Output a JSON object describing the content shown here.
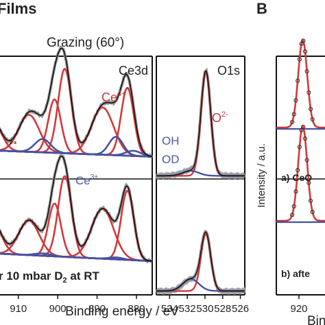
{
  "panel_a": {
    "heading": "Films",
    "condition": "Grazing (60°)"
  },
  "panel_b": {
    "letter": "B"
  },
  "chart_data": [
    {
      "type": "line",
      "panel": "Ce3d",
      "title": "Ce3d",
      "xlabel": "Binding energy / eV",
      "xlim": [
        915,
        876
      ],
      "x_reversed": true,
      "ticks": [
        910,
        900,
        890,
        880
      ],
      "tick_labels": [
        "910",
        "900",
        "890",
        "880"
      ],
      "annotations": {
        "ce4": "Ce4+",
        "ce3": "Ce3+",
        "cropped_sample_label": "2-x",
        "bottom_label": "r 10 mbar D₂ at RT"
      },
      "components": {
        "ce4": [
          {
            "c": 916.6,
            "w": 2.2
          },
          {
            "c": 907.3,
            "w": 2.6
          },
          {
            "c": 900.8,
            "w": 1.6
          },
          {
            "c": 898.2,
            "w": 1.7
          },
          {
            "c": 888.6,
            "w": 2.8
          },
          {
            "c": 882.3,
            "w": 1.6
          }
        ],
        "ce3": [
          {
            "c": 903.8,
            "w": 2.0
          },
          {
            "c": 885.2,
            "w": 1.8
          },
          {
            "c": 880.8,
            "w": 1.9
          }
        ]
      },
      "spectra": [
        {
          "label": "top",
          "amplitudes": {
            "ce4": [
              0.3,
              0.36,
              0.52,
              0.82,
              0.46,
              0.66
            ],
            "ce3": [
              0.13,
              0.18,
              0.05
            ]
          },
          "background": [
            0.05,
            0.015
          ]
        },
        {
          "label": "bottom",
          "amplitudes": {
            "ce4": [
              0.34,
              0.36,
              0.55,
              0.84,
              0.52,
              0.72
            ],
            "ce3": [
              0.025,
              0.02,
              0.0
            ]
          },
          "background": [
            0.08,
            0.02
          ]
        }
      ]
    },
    {
      "type": "line",
      "panel": "O1s",
      "title": "O1s",
      "xlim": [
        535.5,
        525.5
      ],
      "x_reversed": true,
      "ticks": [
        534,
        532,
        530,
        528,
        526
      ],
      "tick_labels": [
        "534",
        "532",
        "530",
        "528",
        "526"
      ],
      "annotations": {
        "o2": "O2-",
        "oh": "OH",
        "od": "OD"
      },
      "components": {
        "o2": {
          "c": 529.9,
          "w": 0.55
        },
        "oh": {
          "c": 531.6,
          "w": 0.9
        }
      },
      "spectra": [
        {
          "label": "top",
          "amplitudes": {
            "o2": 0.95,
            "oh": 0.045
          }
        },
        {
          "label": "bottom",
          "amplitudes": {
            "o2": 0.52,
            "oh": 0.11
          }
        }
      ]
    },
    {
      "type": "line",
      "panel": "B",
      "ylabel": "Intensity / a.u.",
      "xlabel_fragment": "Bin",
      "tick_labels": [
        "920"
      ],
      "trace_labels": {
        "a": "a) CeO",
        "b": "b) afte"
      },
      "peak": {
        "c": 0.5,
        "w": 0.085
      },
      "spectra": [
        {
          "label": "a",
          "amplitude": 0.88
        },
        {
          "label": "b",
          "amplitude": 0.92
        }
      ]
    }
  ]
}
